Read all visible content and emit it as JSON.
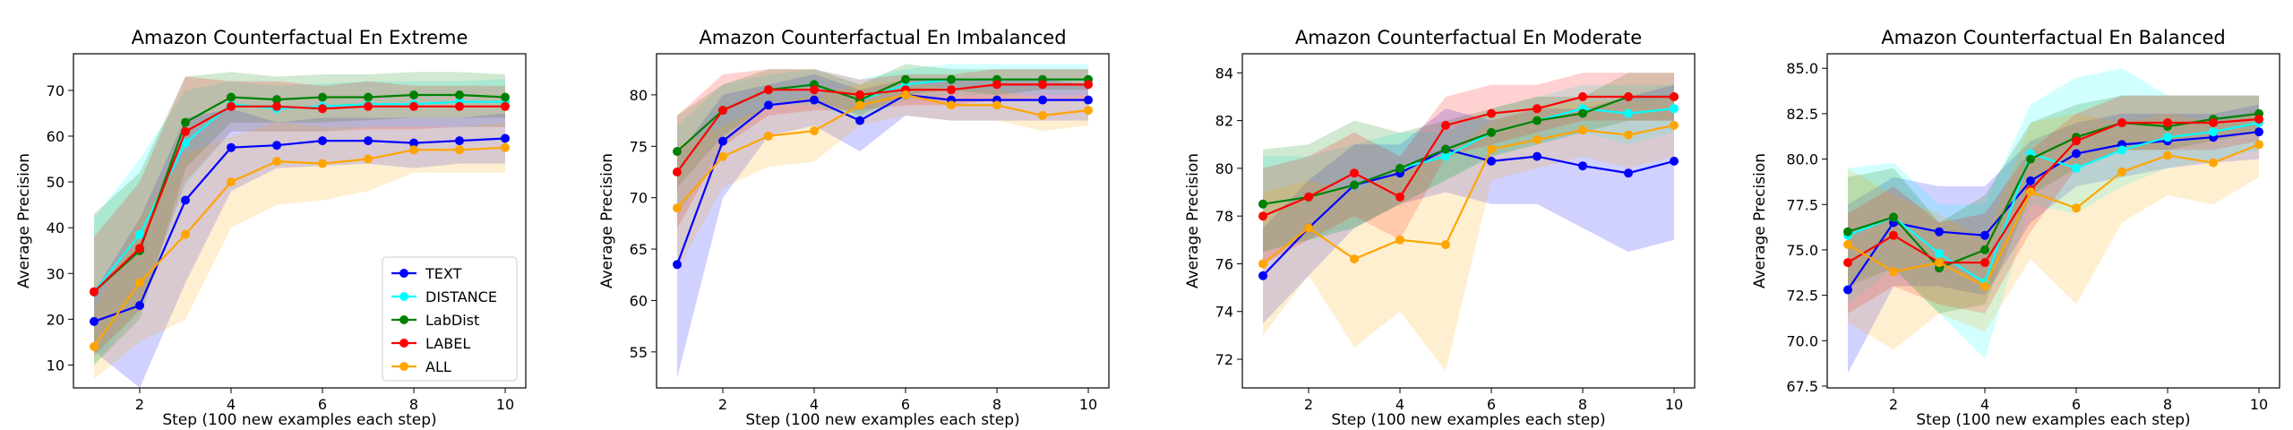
{
  "chart_data": [
    {
      "type": "line",
      "title": "Amazon Counterfactual En Extreme",
      "xlabel": "Step (100 new examples each step)",
      "ylabel": "Average Precision",
      "xlim": [
        0.55,
        10.45
      ],
      "ylim": [
        5,
        78
      ],
      "xticks": [
        2,
        4,
        6,
        8,
        10
      ],
      "yticks": [
        10,
        20,
        30,
        40,
        50,
        60,
        70
      ],
      "legend": "lower-right",
      "x": [
        1,
        2,
        3,
        4,
        5,
        6,
        7,
        8,
        9,
        10
      ],
      "series": [
        {
          "name": "TEXT",
          "color": "#0000ff",
          "values": [
            19.5,
            23,
            46,
            57.5,
            58,
            59,
            59,
            58.5,
            59,
            59.5
          ],
          "lower": [
            13,
            5,
            28,
            48,
            53,
            53.5,
            54,
            53,
            54,
            54
          ],
          "upper": [
            26,
            42,
            64,
            66,
            63,
            64,
            64,
            64,
            64,
            65
          ]
        },
        {
          "name": "DISTANCE",
          "color": "#00ffff",
          "values": [
            26,
            38.5,
            58.5,
            67,
            66,
            66.5,
            67,
            67,
            67.5,
            67.5
          ],
          "lower": [
            10,
            22,
            49,
            61,
            61,
            61,
            62,
            62,
            62,
            62
          ],
          "upper": [
            42,
            55,
            70,
            72,
            71,
            71.5,
            72,
            72,
            72,
            72.5
          ]
        },
        {
          "name": "LabDist",
          "color": "#008000",
          "values": [
            26,
            35,
            63,
            68.5,
            68,
            68.5,
            68.5,
            69,
            69,
            68.5
          ],
          "lower": [
            10,
            20,
            53,
            63,
            63,
            63,
            63.5,
            64,
            64,
            64
          ],
          "upper": [
            43,
            52,
            73,
            74,
            73,
            73.5,
            73.5,
            74,
            74,
            73.5
          ]
        },
        {
          "name": "LABEL",
          "color": "#ff0000",
          "values": [
            26,
            35.5,
            61,
            66.5,
            66.5,
            66,
            66.5,
            66.5,
            66.5,
            66.5
          ],
          "lower": [
            12,
            22,
            50,
            61,
            61,
            61,
            61.5,
            61.5,
            62,
            62
          ],
          "upper": [
            38,
            50,
            73,
            72,
            72,
            71,
            72,
            71,
            71,
            71
          ]
        },
        {
          "name": "ALL",
          "color": "#ffa500",
          "values": [
            14,
            28,
            38.5,
            50,
            54.5,
            54,
            55,
            57,
            57,
            57.5
          ],
          "lower": [
            7,
            15,
            20,
            40,
            45,
            46,
            48,
            52,
            52,
            52
          ],
          "upper": [
            22,
            42,
            56,
            60,
            63,
            62,
            62,
            62,
            62,
            63
          ]
        }
      ]
    },
    {
      "type": "line",
      "title": "Amazon Counterfactual En Imbalanced",
      "xlabel": "Step (100 new examples each step)",
      "ylabel": "Average Precision",
      "xlim": [
        0.55,
        10.45
      ],
      "ylim": [
        51.5,
        84
      ],
      "xticks": [
        2,
        4,
        6,
        8,
        10
      ],
      "yticks": [
        55,
        60,
        65,
        70,
        75,
        80
      ],
      "x": [
        1,
        2,
        3,
        4,
        5,
        6,
        7,
        8,
        9,
        10
      ],
      "series": [
        {
          "name": "TEXT",
          "color": "#0000ff",
          "values": [
            63.5,
            75.5,
            79,
            79.5,
            77.5,
            80,
            79.5,
            79.5,
            79.5,
            79.5
          ],
          "lower": [
            52.5,
            70,
            76,
            77,
            74.5,
            78,
            77.5,
            77.5,
            77.5,
            77.5
          ],
          "upper": [
            74,
            80,
            81,
            82,
            80.5,
            81.5,
            81.5,
            81.5,
            81.5,
            81
          ]
        },
        {
          "name": "DISTANCE",
          "color": "#00ffff",
          "values": [
            72.5,
            78.5,
            80.5,
            81,
            79.5,
            81,
            81.5,
            81.5,
            81.5,
            81.5
          ],
          "lower": [
            68,
            75,
            79,
            79,
            77.5,
            79.5,
            80,
            80,
            80,
            80
          ],
          "upper": [
            77,
            81,
            82,
            82.5,
            81.5,
            82.5,
            83,
            83,
            83,
            83
          ]
        },
        {
          "name": "LabDist",
          "color": "#008000",
          "values": [
            74.5,
            78.5,
            80.5,
            81,
            79.5,
            81.5,
            81.5,
            81.5,
            81.5,
            81.5
          ],
          "lower": [
            71,
            76,
            79,
            79.5,
            78,
            80,
            80.5,
            80,
            80.5,
            80.5
          ],
          "upper": [
            78,
            81,
            82.5,
            82.5,
            81,
            83,
            82.5,
            82.5,
            82.5,
            82.5
          ]
        },
        {
          "name": "LABEL",
          "color": "#ff0000",
          "values": [
            72.5,
            78.5,
            80.5,
            80.5,
            80,
            80.5,
            80.5,
            81,
            81,
            81
          ],
          "lower": [
            67,
            75,
            78,
            78.5,
            78.5,
            79,
            79,
            79.5,
            79.5,
            79.5
          ],
          "upper": [
            78,
            82,
            82.5,
            82.5,
            81.5,
            82,
            82,
            82.5,
            82.5,
            82.5
          ]
        },
        {
          "name": "ALL",
          "color": "#ffa500",
          "values": [
            69,
            74,
            76,
            76.5,
            79,
            80,
            79,
            79,
            78,
            78.5
          ],
          "lower": [
            63,
            71,
            73,
            73.5,
            77,
            78,
            77.5,
            77.5,
            76.5,
            77
          ],
          "upper": [
            75,
            77,
            79,
            80,
            81,
            81.5,
            80.5,
            80.5,
            79.5,
            80
          ]
        }
      ]
    },
    {
      "type": "line",
      "title": "Amazon Counterfactual En Moderate",
      "xlabel": "Step (100 new examples each step)",
      "ylabel": "Average Precision",
      "xlim": [
        0.55,
        10.45
      ],
      "ylim": [
        70.8,
        84.8
      ],
      "xticks": [
        2,
        4,
        6,
        8,
        10
      ],
      "yticks": [
        72,
        74,
        76,
        78,
        80,
        82,
        84
      ],
      "x": [
        1,
        2,
        3,
        4,
        5,
        6,
        7,
        8,
        9,
        10
      ],
      "series": [
        {
          "name": "TEXT",
          "color": "#0000ff",
          "values": [
            75.5,
            77.5,
            79.3,
            79.8,
            80.8,
            80.3,
            80.5,
            80.1,
            79.8,
            80.3
          ],
          "lower": [
            73.5,
            75.5,
            77.5,
            78.5,
            79,
            78.5,
            78.5,
            77.5,
            76.5,
            77
          ],
          "upper": [
            77.5,
            79.5,
            81,
            81,
            82.5,
            82,
            82.5,
            82.5,
            83,
            83.5
          ]
        },
        {
          "name": "DISTANCE",
          "color": "#00ffff",
          "values": [
            78.5,
            78.8,
            79.3,
            80,
            80.5,
            81.5,
            82,
            82.5,
            82.3,
            82.5
          ],
          "lower": [
            76.5,
            77,
            77.5,
            78.5,
            79.5,
            80.5,
            81,
            81.5,
            81,
            81.5
          ],
          "upper": [
            80.5,
            80.5,
            81,
            81.5,
            81.5,
            82.5,
            83,
            83.5,
            83.5,
            83.5
          ]
        },
        {
          "name": "LabDist",
          "color": "#008000",
          "values": [
            78.5,
            78.8,
            79.3,
            80,
            80.8,
            81.5,
            82,
            82.3,
            83,
            83
          ],
          "lower": [
            76.5,
            77,
            77.5,
            78.5,
            79.5,
            80.5,
            81,
            81.5,
            82,
            82
          ],
          "upper": [
            80.8,
            81,
            82,
            81.5,
            82,
            82.5,
            83,
            83,
            84,
            84
          ]
        },
        {
          "name": "LABEL",
          "color": "#ff0000",
          "values": [
            78,
            78.8,
            79.8,
            78.8,
            81.8,
            82.3,
            82.5,
            83,
            83,
            83
          ],
          "lower": [
            76,
            77,
            78,
            77,
            80.5,
            81,
            81.5,
            82,
            82,
            82
          ],
          "upper": [
            80,
            80.5,
            81.5,
            80.5,
            83,
            83.5,
            83.5,
            84,
            84,
            84
          ]
        },
        {
          "name": "ALL",
          "color": "#ffa500",
          "values": [
            76,
            77.5,
            76.2,
            77,
            76.8,
            80.8,
            81.2,
            81.6,
            81.4,
            81.8
          ],
          "lower": [
            73,
            75.5,
            72.5,
            74,
            71.5,
            79.5,
            80,
            80.5,
            80,
            80.5
          ],
          "upper": [
            79,
            79.5,
            79,
            80,
            80.5,
            82,
            82.5,
            82.8,
            82.8,
            83
          ]
        }
      ]
    },
    {
      "type": "line",
      "title": "Amazon Counterfactual En Balanced",
      "xlabel": "Step (100 new examples each step)",
      "ylabel": "Average Precision",
      "xlim": [
        0.55,
        10.45
      ],
      "ylim": [
        67.4,
        85.8
      ],
      "xticks": [
        2,
        4,
        6,
        8,
        10
      ],
      "yticks": [
        67.5,
        70.0,
        72.5,
        75.0,
        77.5,
        80.0,
        82.5,
        85.0
      ],
      "ytickdecimals": 1,
      "x": [
        1,
        2,
        3,
        4,
        5,
        6,
        7,
        8,
        9,
        10
      ],
      "series": [
        {
          "name": "TEXT",
          "color": "#0000ff",
          "values": [
            72.8,
            76.5,
            76,
            75.8,
            78.8,
            80.3,
            80.8,
            81,
            81.2,
            81.5
          ],
          "lower": [
            68.2,
            73,
            73,
            72.5,
            76.5,
            78.5,
            79,
            79.5,
            79.8,
            80
          ],
          "upper": [
            77.5,
            79,
            78.5,
            78.5,
            81,
            82,
            82.5,
            82.5,
            82.5,
            83
          ]
        },
        {
          "name": "DISTANCE",
          "color": "#00ffff",
          "values": [
            75.8,
            76.8,
            74.8,
            73.2,
            80.3,
            79.5,
            80.5,
            81.2,
            81.5,
            82
          ],
          "lower": [
            72,
            74,
            71.5,
            69,
            77.5,
            77,
            78.5,
            79.5,
            80,
            80.5
          ],
          "upper": [
            79.5,
            79.8,
            77.5,
            77.5,
            83,
            84.5,
            85,
            83.5,
            83.5,
            83.5
          ]
        },
        {
          "name": "LabDist",
          "color": "#008000",
          "values": [
            76,
            76.8,
            74,
            75,
            80,
            81.2,
            82,
            81.8,
            82.2,
            82.5
          ],
          "lower": [
            73,
            74,
            71.5,
            72,
            78,
            79.5,
            80.5,
            80.5,
            81,
            81.5
          ],
          "upper": [
            79,
            79.5,
            76.5,
            78,
            82,
            83,
            83.5,
            83.5,
            83.5,
            83.5
          ]
        },
        {
          "name": "LABEL",
          "color": "#ff0000",
          "values": [
            74.3,
            75.8,
            74.3,
            74.3,
            78.3,
            81,
            82,
            82,
            82,
            82.2
          ],
          "lower": [
            71.5,
            73,
            72,
            71.5,
            76,
            79.5,
            80.5,
            80.5,
            80.5,
            81
          ],
          "upper": [
            77,
            78.5,
            76.5,
            77,
            80.5,
            82.5,
            83.5,
            83.5,
            83.5,
            83.5
          ]
        },
        {
          "name": "ALL",
          "color": "#ffa500",
          "values": [
            75.3,
            73.8,
            74.3,
            73,
            78.2,
            77.3,
            79.3,
            80.2,
            79.8,
            80.8
          ],
          "lower": [
            71,
            69.5,
            71.5,
            70.5,
            74.5,
            72,
            76.5,
            78,
            77.5,
            79
          ],
          "upper": [
            79.5,
            78,
            77,
            75.5,
            82,
            82.5,
            82,
            82.5,
            82,
            82.5
          ]
        }
      ]
    }
  ]
}
